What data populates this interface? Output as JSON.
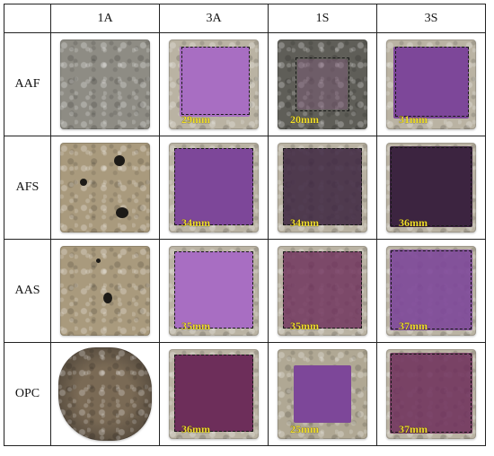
{
  "columns": [
    "1A",
    "3A",
    "1S",
    "3S"
  ],
  "rows": [
    {
      "label": "AAF",
      "cells": [
        {
          "depth": "",
          "stained": false
        },
        {
          "depth": "29mm",
          "stained": true
        },
        {
          "depth": "20mm",
          "stained": true
        },
        {
          "depth": "31mm",
          "stained": true
        }
      ]
    },
    {
      "label": "AFS",
      "cells": [
        {
          "depth": "",
          "stained": false
        },
        {
          "depth": "34mm",
          "stained": true
        },
        {
          "depth": "34mm",
          "stained": true
        },
        {
          "depth": "36mm",
          "stained": true
        }
      ]
    },
    {
      "label": "AAS",
      "cells": [
        {
          "depth": "",
          "stained": false
        },
        {
          "depth": "35mm",
          "stained": true
        },
        {
          "depth": "35mm",
          "stained": true
        },
        {
          "depth": "37mm",
          "stained": true
        }
      ]
    },
    {
      "label": "OPC",
      "cells": [
        {
          "depth": "",
          "stained": false
        },
        {
          "depth": "36mm",
          "stained": true
        },
        {
          "depth": "25mm",
          "stained": true
        },
        {
          "depth": "37mm",
          "stained": true
        }
      ]
    }
  ],
  "colors": {
    "depth_label": "#f2df2a",
    "stain_violet": "#a86ec2",
    "stain_dark": "#3c2440",
    "border": "#222222"
  }
}
